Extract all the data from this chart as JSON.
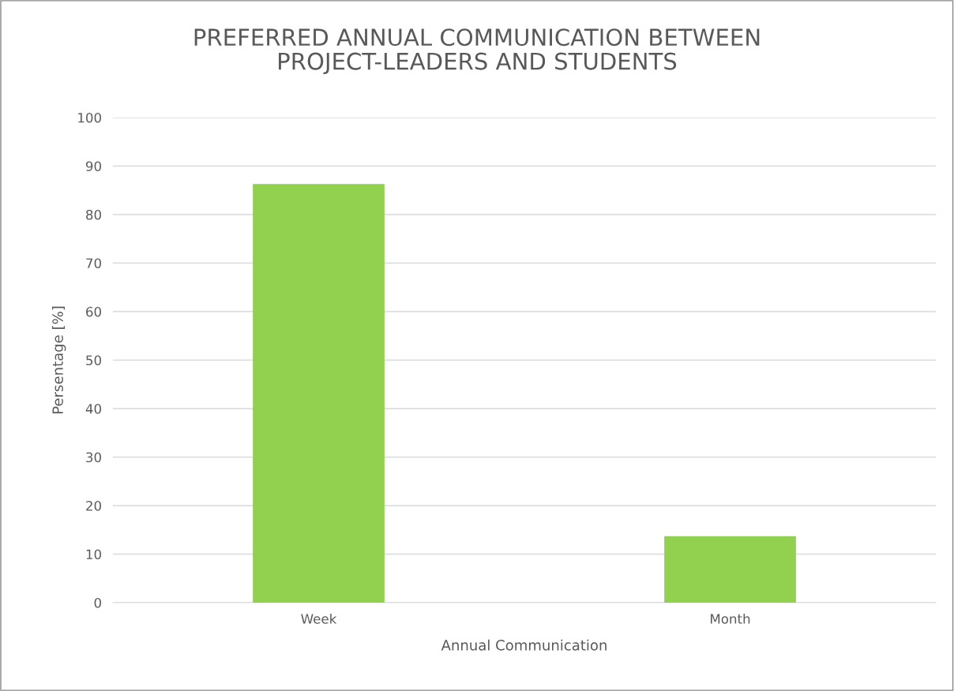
{
  "chart_data": {
    "type": "bar",
    "title": "PREFERRED ANNUAL COMMUNICATION BETWEEN\nPROJECT-LEADERS AND STUDENTS",
    "xlabel": "Annual Communication",
    "ylabel": "Persentage [%]",
    "categories": [
      "Week",
      "Month"
    ],
    "values": [
      86.3,
      13.7
    ],
    "color": "#92d050",
    "ylim": [
      0,
      100
    ],
    "yticks": [
      0,
      10,
      20,
      30,
      40,
      50,
      60,
      70,
      80,
      90,
      100
    ],
    "grid": "y",
    "legend": false
  }
}
